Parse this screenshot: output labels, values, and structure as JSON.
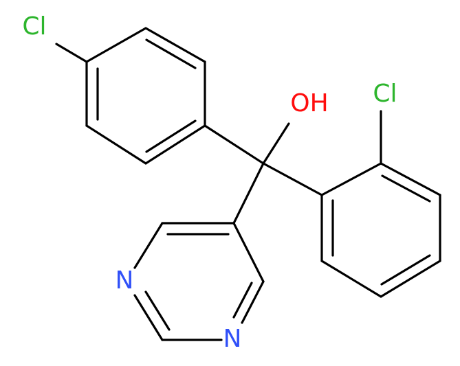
{
  "atoms": [
    {
      "label": "Cl"
    },
    {
      "label": "OH"
    },
    {
      "label": "Cl"
    },
    {
      "label": "N"
    },
    {
      "label": "N"
    }
  ]
}
